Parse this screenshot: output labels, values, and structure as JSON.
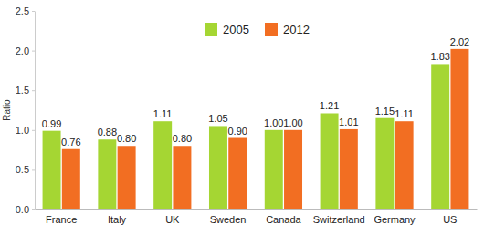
{
  "chart_data": {
    "type": "bar",
    "categories": [
      "France",
      "Italy",
      "UK",
      "Sweden",
      "Canada",
      "Switzerland",
      "Germany",
      "US"
    ],
    "series": [
      {
        "name": "2005",
        "color": "#a5d633",
        "values": [
          0.99,
          0.88,
          1.11,
          1.05,
          1.0,
          1.21,
          1.15,
          1.83
        ],
        "value_labels": [
          "0.99",
          "0.88",
          "1.11",
          "1.05",
          "1.00",
          "1.21",
          "1.15",
          "1.83"
        ]
      },
      {
        "name": "2012",
        "color": "#f26e22",
        "values": [
          0.76,
          0.8,
          0.8,
          0.9,
          1.0,
          1.01,
          1.11,
          2.02
        ],
        "value_labels": [
          "0.76",
          "0.80",
          "0.80",
          "0.90",
          "1.00",
          "1.01",
          "1.11",
          "2.02"
        ]
      }
    ],
    "ylabel": "Ratio",
    "ylim": [
      0,
      2.5
    ],
    "yticks": [
      {
        "value": 0,
        "label": "0.0"
      },
      0.5,
      {
        "value": 1,
        "label": "1.0"
      },
      1.5,
      {
        "value": 2,
        "label": "2.0"
      },
      2.5
    ],
    "legend": "top",
    "data_labels": true,
    "grid": false
  }
}
